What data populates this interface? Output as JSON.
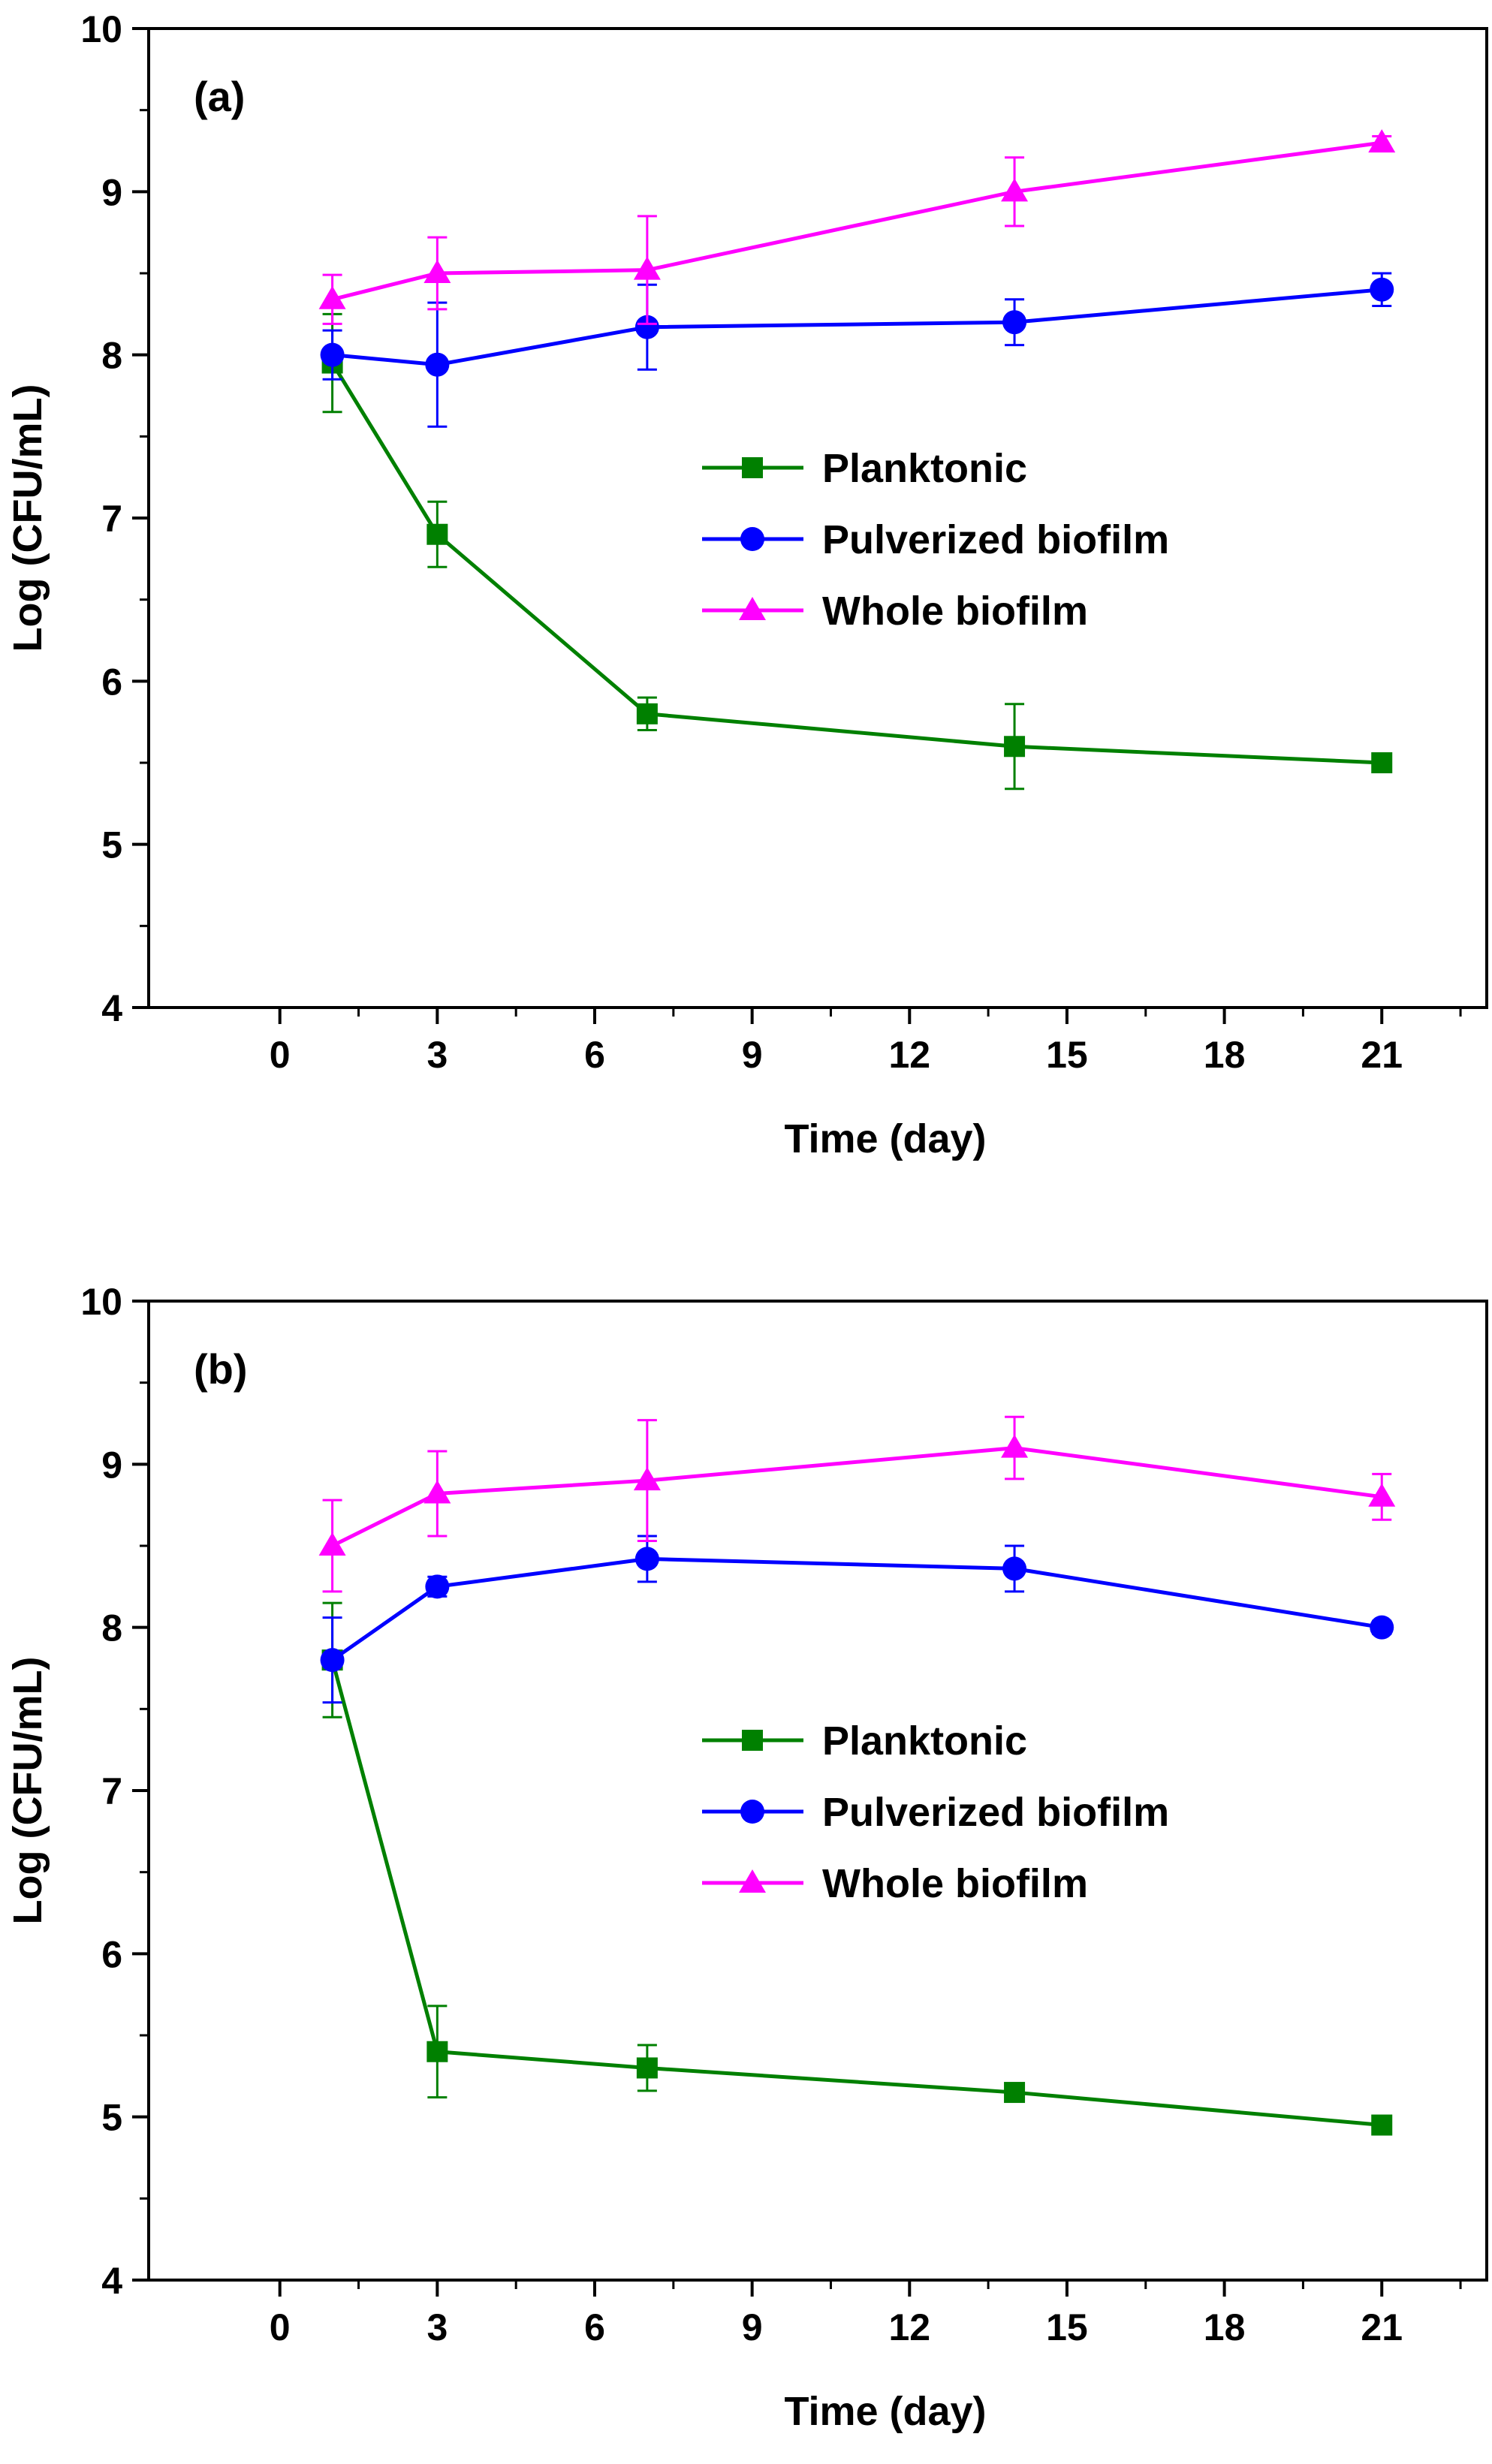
{
  "chart_data": [
    {
      "type": "line",
      "panel_label": "(a)",
      "xlabel": "Time (day)",
      "ylabel": "Log (CFU/mL)",
      "xlim": [
        -2.5,
        23
      ],
      "ylim": [
        4,
        10
      ],
      "xticks": [
        0,
        3,
        6,
        9,
        12,
        15,
        18,
        21
      ],
      "yticks": [
        4,
        5,
        6,
        7,
        8,
        9,
        10
      ],
      "legend_position": "center-right",
      "series": [
        {
          "name": "Planktonic",
          "color": "#008000",
          "marker": "square",
          "x": [
            1,
            3,
            7,
            14,
            21
          ],
          "y": [
            7.95,
            6.9,
            5.8,
            5.6,
            5.5
          ],
          "error": [
            0.3,
            0.2,
            0.1,
            0.26,
            0.05
          ]
        },
        {
          "name": "Pulverized biofilm",
          "color": "#0000FF",
          "marker": "circle",
          "x": [
            1,
            3,
            7,
            14,
            21
          ],
          "y": [
            8.0,
            7.94,
            8.17,
            8.2,
            8.4
          ],
          "error": [
            0.15,
            0.38,
            0.26,
            0.14,
            0.1
          ]
        },
        {
          "name": "Whole biofilm",
          "color": "#FF00FF",
          "marker": "triangle",
          "x": [
            1,
            3,
            7,
            14,
            21
          ],
          "y": [
            8.34,
            8.5,
            8.52,
            9.0,
            9.3
          ],
          "error": [
            0.15,
            0.22,
            0.33,
            0.21,
            0.04
          ]
        }
      ]
    },
    {
      "type": "line",
      "panel_label": "(b)",
      "xlabel": "Time (day)",
      "ylabel": "Log (CFU/mL)",
      "xlim": [
        -2.5,
        23
      ],
      "ylim": [
        4,
        10
      ],
      "xticks": [
        0,
        3,
        6,
        9,
        12,
        15,
        18,
        21
      ],
      "yticks": [
        4,
        5,
        6,
        7,
        8,
        9,
        10
      ],
      "legend_position": "center-right",
      "series": [
        {
          "name": "Planktonic",
          "color": "#008000",
          "marker": "square",
          "x": [
            1,
            3,
            7,
            14,
            21
          ],
          "y": [
            7.8,
            5.4,
            5.3,
            5.15,
            4.95
          ],
          "error": [
            0.35,
            0.28,
            0.14,
            0.04,
            0.04
          ]
        },
        {
          "name": "Pulverized biofilm",
          "color": "#0000FF",
          "marker": "circle",
          "x": [
            1,
            3,
            7,
            14,
            21
          ],
          "y": [
            7.8,
            8.25,
            8.42,
            8.36,
            8.0
          ],
          "error": [
            0.26,
            0.06,
            0.14,
            0.14,
            0.04
          ]
        },
        {
          "name": "Whole biofilm",
          "color": "#FF00FF",
          "marker": "triangle",
          "x": [
            1,
            3,
            7,
            14,
            21
          ],
          "y": [
            8.5,
            8.82,
            8.9,
            9.1,
            8.8
          ],
          "error": [
            0.28,
            0.26,
            0.37,
            0.19,
            0.14
          ]
        }
      ]
    }
  ]
}
